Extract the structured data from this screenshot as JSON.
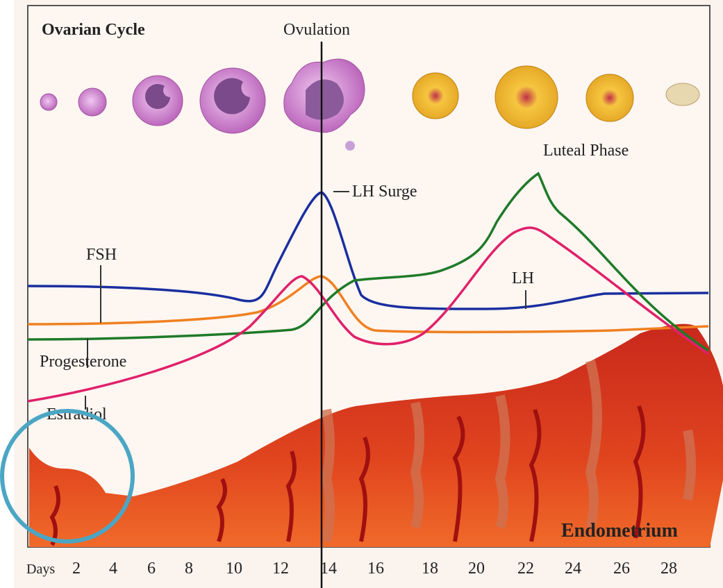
{
  "header": {
    "title": "Ovarian Cycle",
    "ovulation": "Ovulation",
    "luteal_phase": "Luteal Phase"
  },
  "hormones": {
    "lh_surge": "LH Surge",
    "fsh": "FSH",
    "lh": "LH",
    "progesterone": "Progesterone",
    "estradiol": "Estradiol"
  },
  "endometrium": "Endometrium",
  "axis": {
    "label": "Days",
    "days": [
      2,
      4,
      6,
      8,
      10,
      12,
      14,
      16,
      18,
      20,
      22,
      24,
      26,
      28
    ]
  }
}
